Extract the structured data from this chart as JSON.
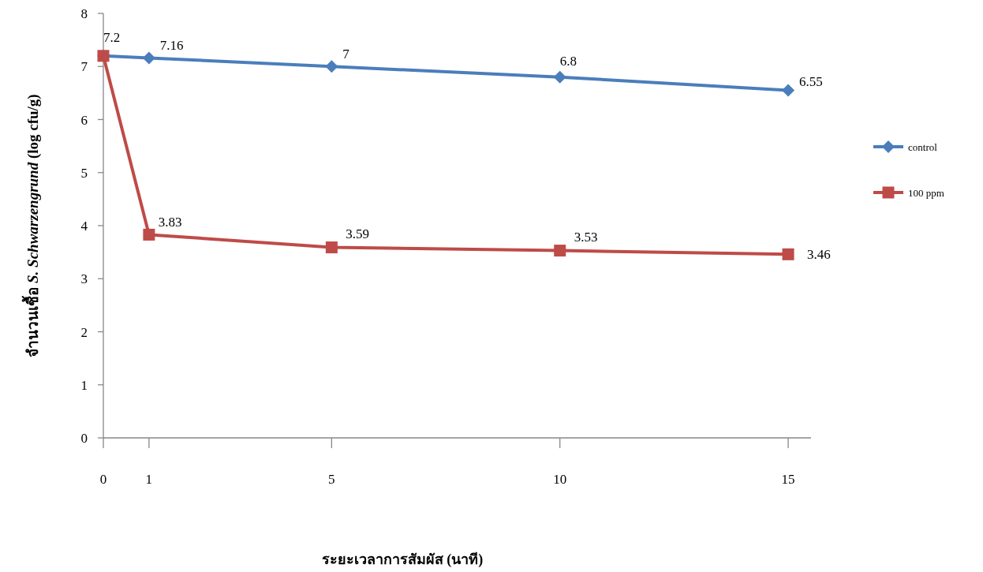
{
  "chart_data": {
    "type": "line",
    "xlabel": "ระยะเวลาการสัมผัส (นาที)",
    "ylabel": "จำนวนเชื้อ *S. Schwarzengrund* (log cfu/g)",
    "x": [
      0,
      1,
      5,
      10,
      15
    ],
    "series": [
      {
        "name": "control",
        "color": "#4a7ebb",
        "marker": "diamond",
        "values": [
          7.2,
          7.16,
          7,
          6.8,
          6.55
        ],
        "value_labels": [
          "7.2",
          "7.16",
          "7",
          "6.8",
          "6.55"
        ]
      },
      {
        "name": "100 ppm",
        "color": "#be4b48",
        "marker": "square",
        "values": [
          7.2,
          3.83,
          3.59,
          3.53,
          3.46
        ],
        "value_labels": [
          null,
          "3.83",
          "3.59",
          "3.53",
          "3.46"
        ]
      }
    ],
    "xlim": [
      0,
      15.5
    ],
    "ylim": [
      0,
      8
    ],
    "xticks": [
      0,
      1,
      5,
      10,
      15
    ],
    "yticks": [
      0,
      1,
      2,
      3,
      4,
      5,
      6,
      7,
      8
    ],
    "grid": false,
    "legend": "right",
    "line_style": "solid"
  }
}
